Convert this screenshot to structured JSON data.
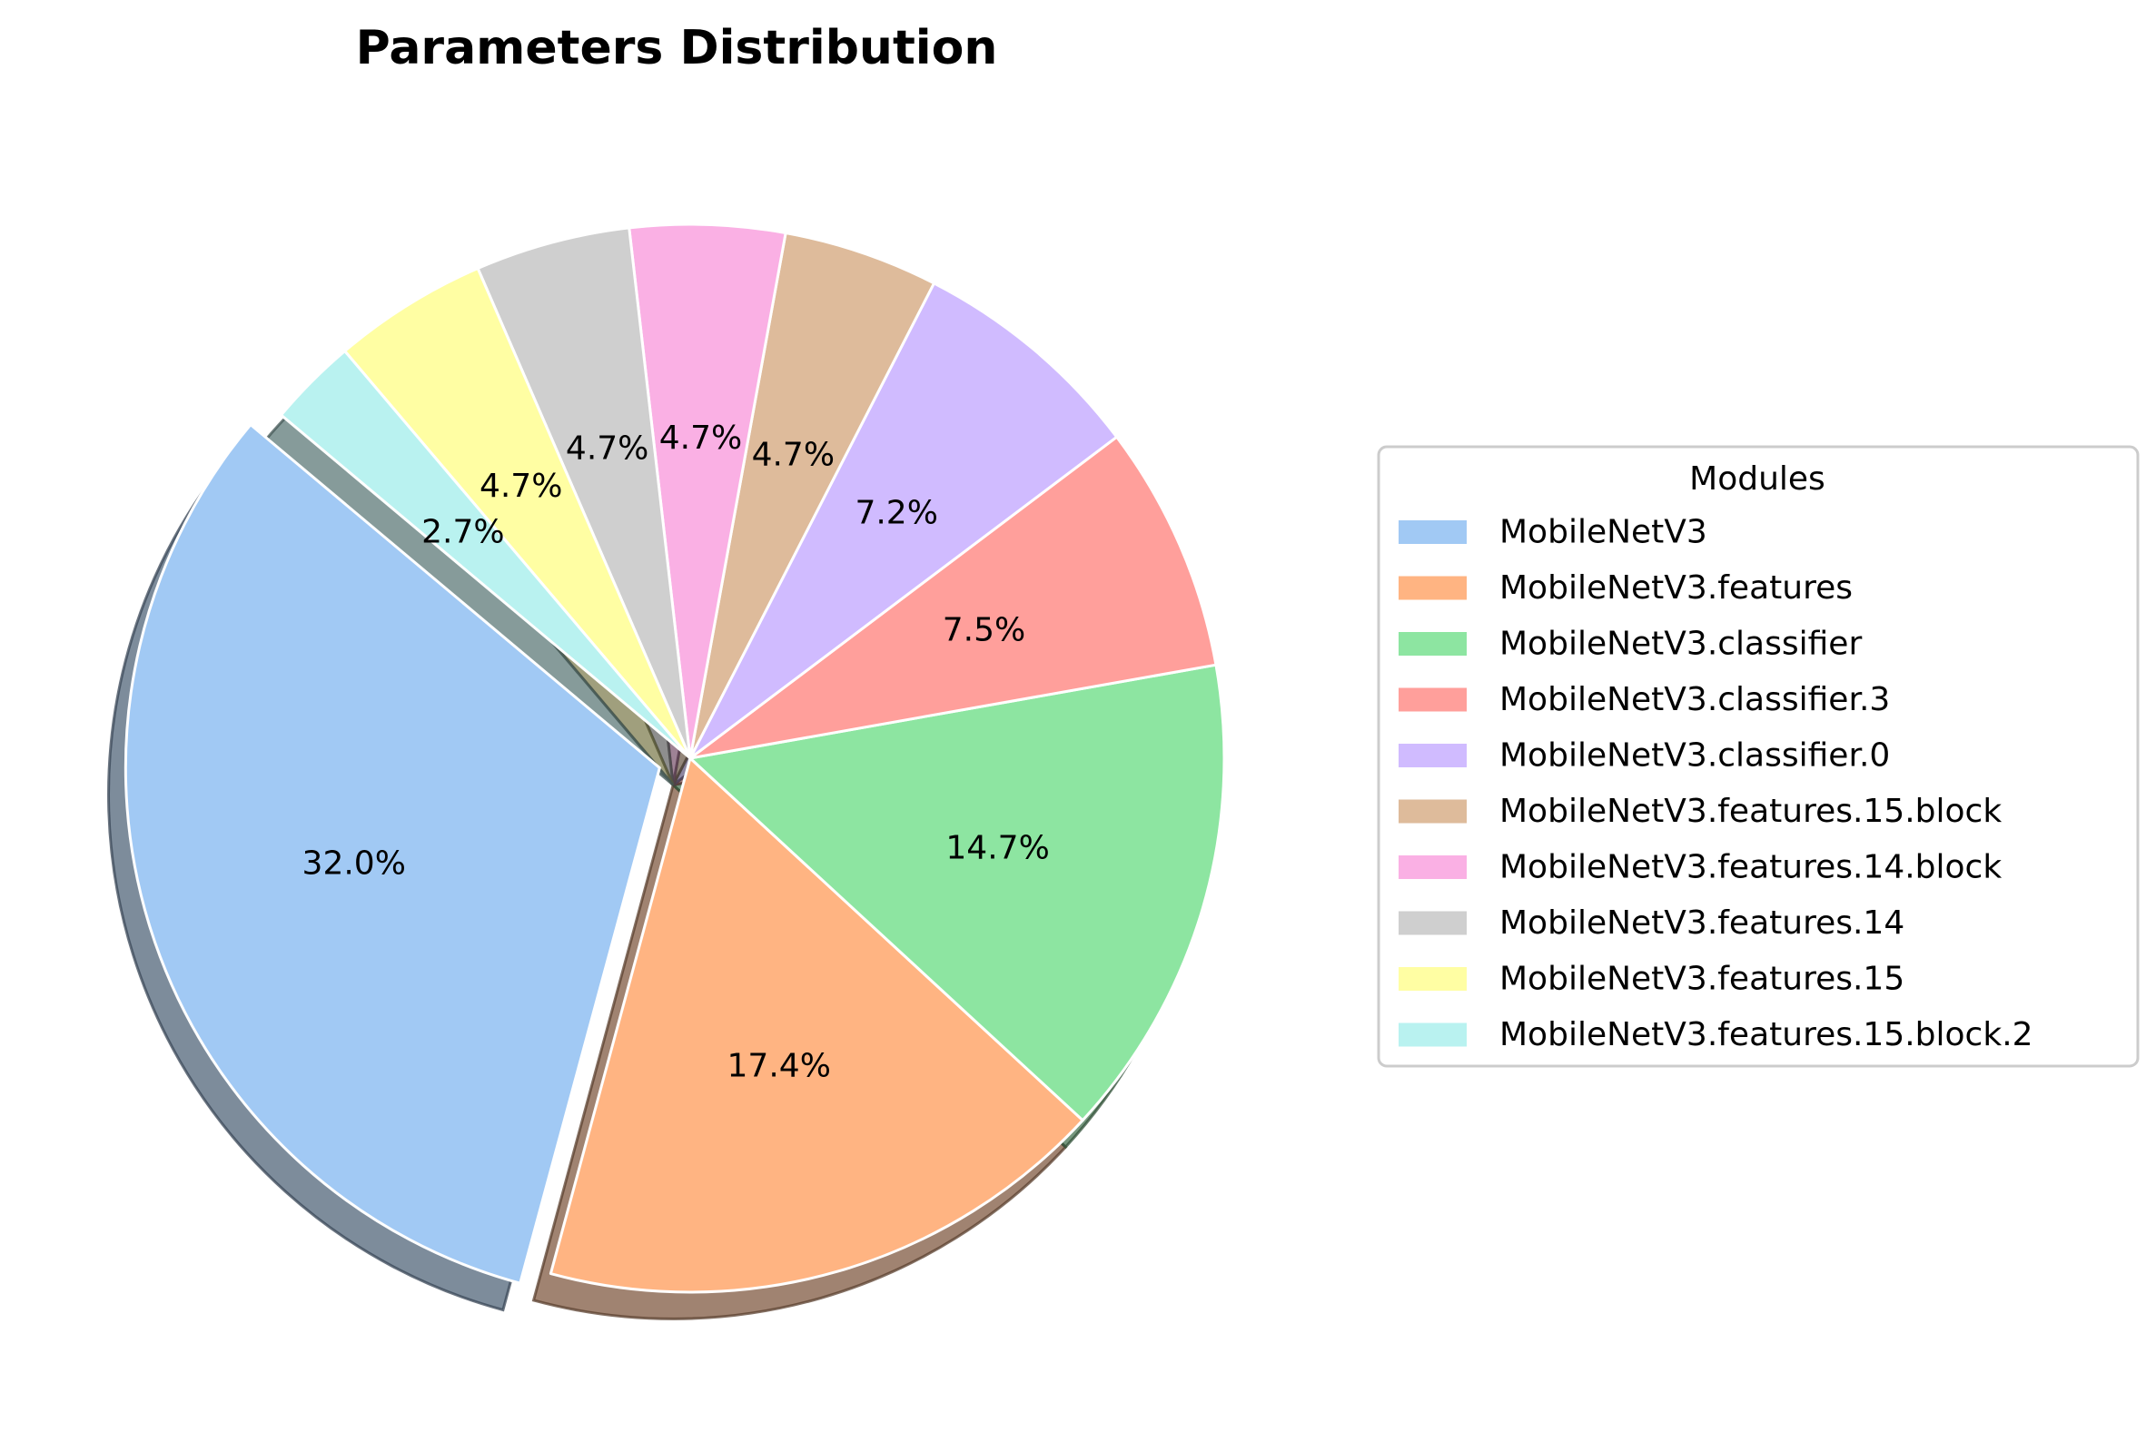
{
  "chart_data": {
    "type": "pie",
    "title": "Parameters Distribution",
    "legend": {
      "title": "Modules",
      "placement": "right"
    },
    "start_angle_deg": 140,
    "exploded_slice": "MobileNetV3",
    "shadow": true,
    "slices": [
      {
        "label": "MobileNetV3",
        "percent": 32.0,
        "percent_label": "32.0%",
        "color": "#a1c9f4"
      },
      {
        "label": "MobileNetV3.features",
        "percent": 17.4,
        "percent_label": "17.4%",
        "color": "#ffb482"
      },
      {
        "label": "MobileNetV3.classifier",
        "percent": 14.7,
        "percent_label": "14.7%",
        "color": "#8de5a1"
      },
      {
        "label": "MobileNetV3.classifier.3",
        "percent": 7.5,
        "percent_label": "7.5%",
        "color": "#ff9f9b"
      },
      {
        "label": "MobileNetV3.classifier.0",
        "percent": 7.2,
        "percent_label": "7.2%",
        "color": "#d0bbff"
      },
      {
        "label": "MobileNetV3.features.15.block",
        "percent": 4.7,
        "percent_label": "4.7%",
        "color": "#debb9b"
      },
      {
        "label": "MobileNetV3.features.14.block",
        "percent": 4.7,
        "percent_label": "4.7%",
        "color": "#fab0e4"
      },
      {
        "label": "MobileNetV3.features.14",
        "percent": 4.7,
        "percent_label": "4.7%",
        "color": "#cfcfcf"
      },
      {
        "label": "MobileNetV3.features.15",
        "percent": 4.7,
        "percent_label": "4.7%",
        "color": "#fffea3"
      },
      {
        "label": "MobileNetV3.features.15.block.2",
        "percent": 2.7,
        "percent_label": "2.7%",
        "color": "#b9f2f0"
      }
    ]
  }
}
